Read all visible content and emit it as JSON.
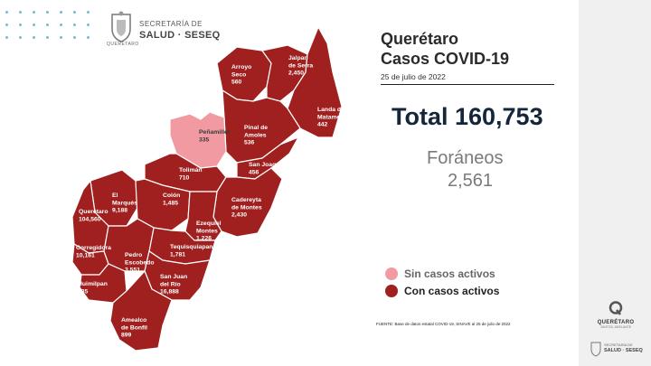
{
  "header": {
    "agency_line1": "SECRETARÍA DE",
    "agency_line2": "SALUD · SESEQ",
    "seal_caption": "QUERÉTARO"
  },
  "report": {
    "state": "Querétaro",
    "subtitle": "Casos COVID-19",
    "date": "25 de julio de 2022",
    "total_label": "Total 160,753",
    "foraneos_label": "Foráneos",
    "foraneos_value": "2,561"
  },
  "legend": {
    "no_active": "Sin casos activos",
    "active": "Con casos activos"
  },
  "source": "FUENTE: Base de datos estatal  COVID-19,  SINAVE  al 25 de julio de 2022",
  "footer_logos": {
    "state_logo": "QUERÉTARO",
    "state_logo_sub": "JUNTOS, ADELANTE",
    "agency_line1": "SECRETARÍA DE",
    "agency_line2": "SALUD · SESEQ"
  },
  "colors": {
    "active": "#a01f1f",
    "active_dark": "#8a1414",
    "no_active": "#f29aa2",
    "border": "#ffffff",
    "accent_dots": "#6fc1cf"
  },
  "icons": {
    "seal": "state-seal-icon",
    "state_logo": "queretaro-q-icon"
  },
  "map": {
    "municipalities": [
      {
        "id": "arroyo_seco",
        "name": [
          "Arroyo",
          "Seco"
        ],
        "value": "560",
        "active": true
      },
      {
        "id": "jalpan",
        "name": [
          "Jalpan",
          "de Serra"
        ],
        "value": "2,450",
        "active": true
      },
      {
        "id": "landa",
        "name": [
          "Landa de",
          "Matamoros"
        ],
        "value": "442",
        "active": true
      },
      {
        "id": "pinal",
        "name": [
          "Pinal de",
          "Amoles"
        ],
        "value": "536",
        "active": true
      },
      {
        "id": "penamiller",
        "name": [
          "Peñamiller"
        ],
        "value": "335",
        "active": false
      },
      {
        "id": "san_joaquin",
        "name": [
          "San Joaquín"
        ],
        "value": "456",
        "active": true
      },
      {
        "id": "toliman",
        "name": [
          "Tolimán"
        ],
        "value": "710",
        "active": true
      },
      {
        "id": "cadereyta",
        "name": [
          "Cadereyta",
          "de Montes"
        ],
        "value": "2,430",
        "active": true
      },
      {
        "id": "el_marques",
        "name": [
          "El",
          "Marqués"
        ],
        "value": "9,188",
        "active": true
      },
      {
        "id": "colon",
        "name": [
          "Colón"
        ],
        "value": "1,485",
        "active": true
      },
      {
        "id": "queretaro",
        "name": [
          "Querétaro"
        ],
        "value": "104,560",
        "active": true
      },
      {
        "id": "ezequiel",
        "name": [
          "Ezequiel",
          "Montes"
        ],
        "value": "1,226",
        "active": true
      },
      {
        "id": "tequisquiapan",
        "name": [
          "Tequisquiapan"
        ],
        "value": "1,781",
        "active": true
      },
      {
        "id": "corregidora",
        "name": [
          "Corregidora"
        ],
        "value": "10,161",
        "active": true
      },
      {
        "id": "pedro",
        "name": [
          "Pedro",
          "Escobedo"
        ],
        "value": "3,551",
        "active": true
      },
      {
        "id": "san_juan",
        "name": [
          "San Juan",
          "del Río"
        ],
        "value": "16,888",
        "active": true
      },
      {
        "id": "huimilpan",
        "name": [
          "Huimilpan"
        ],
        "value": "535",
        "active": true
      },
      {
        "id": "amealco",
        "name": [
          "Amealco",
          "de Bonfil"
        ],
        "value": "899",
        "active": true
      }
    ]
  }
}
